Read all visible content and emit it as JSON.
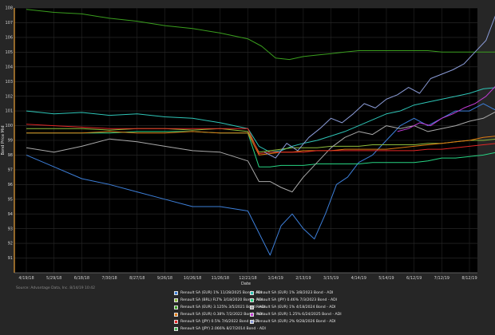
{
  "chart_data": {
    "type": "line",
    "title": "",
    "xlabel": "Date",
    "ylabel": "Bond Price Mid",
    "ylim": [
      90,
      108
    ],
    "yticks": [
      91,
      92,
      93,
      94,
      95,
      96,
      97,
      98,
      99,
      100,
      101,
      102,
      103,
      104,
      105,
      106,
      107,
      108
    ],
    "xticks": [
      "4/19/18",
      "5/29/18",
      "6/18/18",
      "7/30/18",
      "8/27/18",
      "9/26/18",
      "10/26/18",
      "11/26/18",
      "12/21/18",
      "1/14/19",
      "2/13/19",
      "3/15/19",
      "4/14/19",
      "5/14/19",
      "6/12/19",
      "7/12/19",
      "8/12/19"
    ],
    "grid": true,
    "legend_position": "bottom",
    "source": "Source: Advantage Data, Inc. 8/14/19 10:42",
    "series": [
      {
        "name": "Renault SA (EUR) 1% 11/28/2025 Bond - ADI",
        "color": "#3d7fd9",
        "x": [
          0,
          1,
          2,
          3,
          4,
          5,
          6,
          7,
          8,
          8.8,
          9.2,
          9.6,
          10,
          10.4,
          10.8,
          11.2,
          11.6,
          12,
          12.5,
          13,
          13.5,
          14,
          14.5,
          15,
          15.5,
          16,
          16.5,
          17
        ],
        "y": [
          98,
          97.2,
          96.4,
          96,
          95.5,
          95,
          94.5,
          94.5,
          94.2,
          91.2,
          93.2,
          94,
          93,
          92.3,
          94,
          96,
          96.5,
          97.5,
          98,
          99,
          100,
          100.5,
          100,
          100.5,
          101,
          101,
          101.5,
          101
        ]
      },
      {
        "name": "Renault SA (EUR) 1% 3/8/2023 Bond - ADI",
        "color": "#2ec4b6",
        "x": [
          0,
          1,
          2,
          3,
          4,
          5,
          6,
          7,
          8,
          8.4,
          8.8,
          9.2,
          9.6,
          10,
          10.5,
          11,
          11.5,
          12,
          12.5,
          13,
          13.5,
          14,
          14.5,
          15,
          15.5,
          16,
          16.5,
          17
        ],
        "y": [
          101,
          100.8,
          100.9,
          100.7,
          100.8,
          100.6,
          100.5,
          100.2,
          99.8,
          98.6,
          98.2,
          98.3,
          98.6,
          98.8,
          99,
          99.3,
          99.6,
          100,
          100.4,
          100.8,
          101,
          101.4,
          101.6,
          101.8,
          102,
          102.2,
          102.5,
          102.6
        ]
      },
      {
        "name": "Renault SA (BRL) FLT% 3/18/2020 Bond - ADI",
        "color": "#8fbc3c",
        "x": [
          0,
          1,
          2,
          3,
          4,
          5,
          6,
          7,
          8,
          8.4,
          8.8,
          9.2,
          9.6,
          10,
          10.5,
          11,
          11.5,
          12,
          12.5,
          13,
          13.5,
          14,
          14.5,
          15,
          15.5,
          16,
          16.5,
          17
        ],
        "y": [
          99.8,
          99.8,
          99.8,
          99.7,
          99.8,
          99.8,
          99.7,
          99.8,
          99.6,
          98.2,
          98.3,
          98.4,
          98.5,
          98.5,
          98.5,
          98.6,
          98.6,
          98.6,
          98.7,
          98.7,
          98.7,
          98.7,
          98.8,
          98.8,
          98.9,
          99,
          99,
          99.1
        ]
      },
      {
        "name": "Renault SA (JPY) 0.46% 7/3/2023 Bond - ADI",
        "color": "#27d483",
        "x": [
          0,
          1,
          2,
          3,
          4,
          5,
          6,
          7,
          8,
          8.4,
          8.8,
          9.2,
          9.6,
          10,
          10.5,
          11,
          11.5,
          12,
          12.5,
          13,
          13.5,
          14,
          14.5,
          15,
          15.5,
          16,
          16.5,
          17
        ],
        "y": [
          99.5,
          99.5,
          99.5,
          99.5,
          99.6,
          99.6,
          99.6,
          99.5,
          99.5,
          97.2,
          97.2,
          97.3,
          97.3,
          97.3,
          97.4,
          97.4,
          97.4,
          97.4,
          97.5,
          97.5,
          97.5,
          97.5,
          97.6,
          97.8,
          97.8,
          97.9,
          98,
          98.2
        ]
      },
      {
        "name": "Renault SA (EUR) 3.125% 3/5/2021 Bond - ADI",
        "color": "#3a9e1e",
        "x": [
          0,
          1,
          2,
          3,
          4,
          5,
          6,
          7,
          8,
          8.5,
          9,
          9.5,
          10,
          10.5,
          11,
          11.5,
          12,
          12.5,
          13,
          13.5,
          14,
          14.5,
          15,
          15.5,
          16,
          16.5,
          17
        ],
        "y": [
          107.9,
          107.7,
          107.6,
          107.3,
          107.1,
          106.8,
          106.6,
          106.3,
          105.9,
          105.4,
          104.6,
          104.5,
          104.7,
          104.8,
          104.9,
          105,
          105.1,
          105.1,
          105.1,
          105.1,
          105.1,
          105.1,
          105,
          105,
          105,
          105,
          105
        ]
      },
      {
        "name": "Renault SA (EUR) 1% 4/18/2024 Bond - ADI",
        "color": "#a9a9a9",
        "x": [
          0,
          1,
          2,
          3,
          4,
          5,
          6,
          7,
          8,
          8.4,
          8.8,
          9.2,
          9.6,
          10,
          10.5,
          11,
          11.5,
          12,
          12.5,
          13,
          13.5,
          14,
          14.5,
          15,
          15.5,
          16,
          16.5,
          17
        ],
        "y": [
          98.5,
          98.2,
          98.6,
          99.1,
          98.9,
          98.6,
          98.3,
          98.2,
          97.6,
          96.2,
          96.2,
          95.8,
          95.5,
          96.5,
          97.5,
          98.5,
          99.2,
          99.6,
          99.4,
          100,
          99.8,
          100,
          99.6,
          99.8,
          100,
          100.3,
          100.5,
          101
        ]
      },
      {
        "name": "Renault SA (EUR) 0.38% 7/2/2022 Bond - ADI",
        "color": "#e07b12",
        "x": [
          0,
          1,
          2,
          3,
          4,
          5,
          6,
          7,
          8,
          8.4,
          8.8,
          9.2,
          9.6,
          10,
          10.5,
          11,
          11.5,
          12,
          12.5,
          13,
          13.5,
          14,
          14.5,
          15,
          15.5,
          16,
          16.5,
          17
        ],
        "y": [
          99.5,
          99.5,
          99.5,
          99.6,
          99.5,
          99.5,
          99.6,
          99.5,
          99.5,
          98,
          98.1,
          98.2,
          98.2,
          98.3,
          98.3,
          98.3,
          98.4,
          98.4,
          98.4,
          98.4,
          98.5,
          98.6,
          98.7,
          98.8,
          98.9,
          99,
          99.2,
          99.3
        ]
      },
      {
        "name": "Renault SA (EUR) 1.25% 6/24/2025 Bond - ADI",
        "color": "#c23bd4",
        "x": [
          13.4,
          13.8,
          14.2,
          14.6,
          15,
          15.4,
          15.8,
          16.2,
          16.6,
          17
        ],
        "y": [
          99.6,
          99.8,
          100.2,
          100,
          100.5,
          100.8,
          101.2,
          101.5,
          102,
          102.8
        ]
      },
      {
        "name": "Renault SA (JPY) 0.5% 7/6/2022 Bond - ADI",
        "color": "#e32626",
        "x": [
          0,
          1,
          2,
          3,
          4,
          5,
          6,
          7,
          8,
          8.4,
          8.8,
          9.2,
          9.6,
          10,
          10.5,
          11,
          11.5,
          12,
          12.5,
          13,
          13.5,
          14,
          14.5,
          15,
          15.5,
          16,
          16.5,
          17
        ],
        "y": [
          100.1,
          100,
          99.9,
          99.8,
          99.8,
          99.8,
          99.8,
          99.8,
          99.8,
          98.1,
          98.2,
          98.2,
          98.2,
          98.2,
          98.3,
          98.3,
          98.3,
          98.3,
          98.3,
          98.3,
          98.3,
          98.3,
          98.4,
          98.4,
          98.5,
          98.6,
          98.7,
          98.8
        ]
      },
      {
        "name": "Renault SA (EUR) 2% 9/28/2026 Bond - ADI",
        "color": "#8b9cd8",
        "x": [
          8.6,
          9,
          9.4,
          9.8,
          10.2,
          10.6,
          11,
          11.4,
          11.8,
          12.2,
          12.6,
          13,
          13.4,
          13.8,
          14.2,
          14.6,
          15,
          15.4,
          15.8,
          16.2,
          16.6,
          17
        ],
        "y": [
          98.2,
          97.8,
          98.8,
          98.3,
          99.2,
          99.8,
          100.5,
          100.2,
          100.8,
          101.5,
          101.2,
          101.8,
          102.1,
          102.6,
          102.2,
          103.2,
          103.5,
          103.8,
          104.2,
          105,
          105.8,
          107.8
        ]
      },
      {
        "name": "Renault SA (JPY) 2.066% 8/27/2014 Bond - ADI",
        "color": "#4cbb5a",
        "x": [],
        "y": []
      }
    ]
  }
}
